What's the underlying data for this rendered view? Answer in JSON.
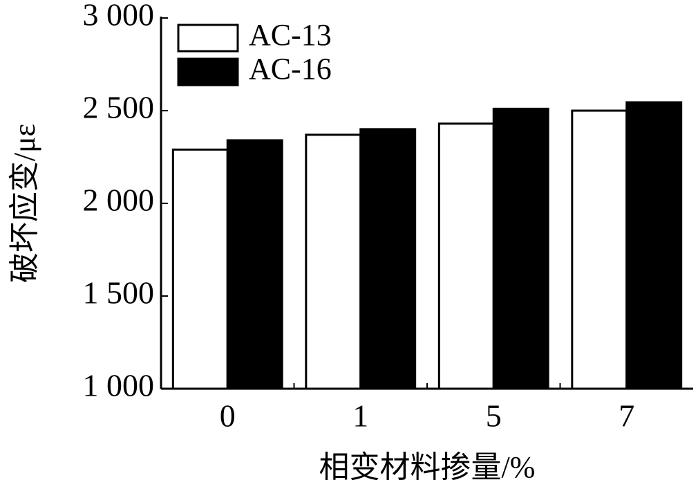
{
  "chart_data": {
    "type": "bar",
    "y_label": "破坏应变/με",
    "x_label": "相变材料掺量/%",
    "categories": [
      "0",
      "1",
      "5",
      "7"
    ],
    "series": [
      {
        "name": "AC-13",
        "color": "#ffffff",
        "values": [
          2290,
          2370,
          2430,
          2500
        ]
      },
      {
        "name": "AC-16",
        "color": "#000000",
        "values": [
          2340,
          2400,
          2510,
          2545
        ]
      }
    ],
    "ylim": [
      1000,
      3000
    ],
    "yticks": [
      {
        "value": 1000,
        "label": "1 000"
      },
      {
        "value": 1500,
        "label": "1 500"
      },
      {
        "value": 2000,
        "label": "2 000"
      },
      {
        "value": 2500,
        "label": "2 500"
      },
      {
        "value": 3000,
        "label": "3 000"
      }
    ],
    "legend": "upper left"
  }
}
